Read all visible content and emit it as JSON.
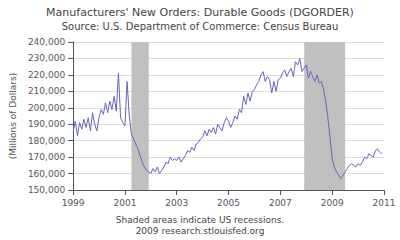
{
  "chart_data": {
    "type": "line",
    "title": "Manufacturers' New Orders: Durable Goods (DGORDER)",
    "subtitle": "Source: U.S. Department of Commerce: Census Bureau",
    "annotations": [
      "Shaded areas indicate US recessions.",
      "2009 research.stlouisfed.org"
    ],
    "ylabel": "(Millions of Dollars)",
    "color": "#6666bb",
    "shaded": {
      "color": "#c0c0c0",
      "ranges": [
        [
          2001.25,
          2001.92
        ],
        [
          2007.92,
          2009.5
        ]
      ]
    },
    "xlim": [
      1999,
      2011
    ],
    "xticks": [
      1999,
      2001,
      2003,
      2005,
      2007,
      2009,
      2011
    ],
    "ylim": [
      150000,
      240000
    ],
    "yticks": [
      {
        "value": 150000,
        "label": "150,000"
      },
      {
        "value": 160000,
        "label": "160,000"
      },
      {
        "value": 170000,
        "label": "170,000"
      },
      {
        "value": 180000,
        "label": "180,000"
      },
      {
        "value": 190000,
        "label": "190,000"
      },
      {
        "value": 200000,
        "label": "200,000"
      },
      {
        "value": 210000,
        "label": "210,000"
      },
      {
        "value": 220000,
        "label": "220,000"
      },
      {
        "value": 230000,
        "label": "230,000"
      },
      {
        "value": 240000,
        "label": "240,000"
      }
    ],
    "grid": true,
    "x": [
      1999.0,
      1999.083,
      1999.167,
      1999.25,
      1999.333,
      1999.417,
      1999.5,
      1999.583,
      1999.667,
      1999.75,
      1999.833,
      1999.917,
      2000.0,
      2000.083,
      2000.167,
      2000.25,
      2000.333,
      2000.417,
      2000.5,
      2000.583,
      2000.667,
      2000.75,
      2000.833,
      2000.917,
      2001.0,
      2001.083,
      2001.167,
      2001.25,
      2001.333,
      2001.417,
      2001.5,
      2001.583,
      2001.667,
      2001.75,
      2001.833,
      2001.917,
      2002.0,
      2002.083,
      2002.167,
      2002.25,
      2002.333,
      2002.417,
      2002.5,
      2002.583,
      2002.667,
      2002.75,
      2002.833,
      2002.917,
      2003.0,
      2003.083,
      2003.167,
      2003.25,
      2003.333,
      2003.417,
      2003.5,
      2003.583,
      2003.667,
      2003.75,
      2003.833,
      2003.917,
      2004.0,
      2004.083,
      2004.167,
      2004.25,
      2004.333,
      2004.417,
      2004.5,
      2004.583,
      2004.667,
      2004.75,
      2004.833,
      2004.917,
      2005.0,
      2005.083,
      2005.167,
      2005.25,
      2005.333,
      2005.417,
      2005.5,
      2005.583,
      2005.667,
      2005.75,
      2005.833,
      2005.917,
      2006.0,
      2006.083,
      2006.167,
      2006.25,
      2006.333,
      2006.417,
      2006.5,
      2006.583,
      2006.667,
      2006.75,
      2006.833,
      2006.917,
      2007.0,
      2007.083,
      2007.167,
      2007.25,
      2007.333,
      2007.417,
      2007.5,
      2007.583,
      2007.667,
      2007.75,
      2007.833,
      2007.917,
      2008.0,
      2008.083,
      2008.167,
      2008.25,
      2008.333,
      2008.417,
      2008.5,
      2008.583,
      2008.667,
      2008.75,
      2008.833,
      2008.917,
      2009.0,
      2009.083,
      2009.167,
      2009.25,
      2009.333,
      2009.417,
      2009.5,
      2009.583,
      2009.667,
      2009.75,
      2009.833,
      2009.917,
      2010.0,
      2010.083,
      2010.167,
      2010.25,
      2010.333,
      2010.417,
      2010.5,
      2010.583,
      2010.667,
      2010.75,
      2010.833,
      2010.917
    ],
    "values": [
      185000,
      192000,
      183000,
      191000,
      187000,
      193000,
      188000,
      194000,
      186000,
      197000,
      190000,
      186000,
      194000,
      199000,
      196000,
      203000,
      197000,
      204000,
      199000,
      207000,
      198000,
      221000,
      194000,
      191000,
      189000,
      216000,
      195000,
      184000,
      181000,
      178000,
      175000,
      171000,
      167000,
      164000,
      162000,
      161000,
      160000,
      163000,
      161000,
      164000,
      160000,
      162000,
      164000,
      167000,
      166000,
      170000,
      168000,
      169000,
      168000,
      170000,
      167000,
      169000,
      171000,
      174000,
      173000,
      176000,
      174000,
      178000,
      179000,
      181000,
      182000,
      186000,
      183000,
      187000,
      185000,
      188000,
      184000,
      190000,
      188000,
      186000,
      191000,
      194000,
      192000,
      188000,
      191000,
      195000,
      193000,
      199000,
      197000,
      207000,
      202000,
      209000,
      204000,
      210000,
      211000,
      214000,
      216000,
      220000,
      222000,
      216000,
      219000,
      217000,
      209000,
      216000,
      210000,
      217000,
      218000,
      221000,
      223000,
      219000,
      222000,
      224000,
      219000,
      228000,
      226000,
      230000,
      222000,
      224000,
      226000,
      218000,
      222000,
      219000,
      216000,
      220000,
      215000,
      216000,
      211000,
      204000,
      194000,
      182000,
      169000,
      164000,
      161000,
      159000,
      157000,
      159000,
      161000,
      163000,
      165000,
      166000,
      165000,
      164000,
      166000,
      165000,
      167000,
      170000,
      169000,
      172000,
      171000,
      170000,
      174000,
      175000,
      173000,
      172000
    ]
  }
}
